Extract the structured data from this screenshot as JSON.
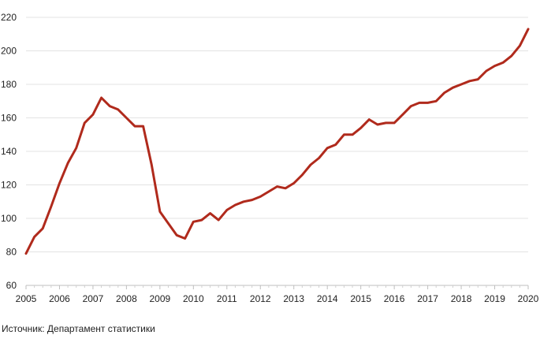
{
  "source_text": "Источник: Департамент статистики",
  "chart_data": {
    "type": "line",
    "title": "",
    "xlabel": "",
    "ylabel": "",
    "ylim": [
      60,
      220
    ],
    "xlim": [
      2005,
      2020
    ],
    "yticks": [
      60,
      80,
      100,
      120,
      140,
      160,
      180,
      200,
      220
    ],
    "xticks": [
      "2005",
      "2006",
      "2007",
      "2008",
      "2009",
      "2010",
      "2011",
      "2012",
      "2013",
      "2014",
      "2015",
      "2016",
      "2017",
      "2018",
      "2019",
      "2020"
    ],
    "grid": true,
    "legend": "none",
    "series_color": "#b02a1c",
    "series": [
      {
        "x": [
          2005.0,
          2005.25,
          2005.5,
          2005.75,
          2006.0,
          2006.25,
          2006.5,
          2006.75,
          2007.0,
          2007.25,
          2007.5,
          2007.75,
          2008.0,
          2008.25,
          2008.5,
          2008.75,
          2009.0,
          2009.25,
          2009.5,
          2009.75,
          2010.0,
          2010.25,
          2010.5,
          2010.75,
          2011.0,
          2011.25,
          2011.5,
          2011.75,
          2012.0,
          2012.25,
          2012.5,
          2012.75,
          2013.0,
          2013.25,
          2013.5,
          2013.75,
          2014.0,
          2014.25,
          2014.5,
          2014.75,
          2015.0,
          2015.25,
          2015.5,
          2015.75,
          2016.0,
          2016.25,
          2016.5,
          2016.75,
          2017.0,
          2017.25,
          2017.5,
          2017.75,
          2018.0,
          2018.25,
          2018.5,
          2018.75,
          2019.0,
          2019.25,
          2019.5,
          2019.75,
          2020.0
        ],
        "values": [
          79,
          89,
          94,
          107,
          121,
          133,
          142,
          157,
          162,
          172,
          167,
          165,
          160,
          155,
          155,
          132,
          104,
          97,
          90,
          88,
          98,
          99,
          103,
          99,
          105,
          108,
          110,
          111,
          113,
          116,
          119,
          118,
          121,
          126,
          132,
          136,
          142,
          144,
          150,
          150,
          154,
          159,
          156,
          157,
          157,
          162,
          167,
          169,
          169,
          170,
          175,
          178,
          180,
          182,
          183,
          188,
          191,
          193,
          197,
          203,
          213
        ]
      }
    ]
  }
}
